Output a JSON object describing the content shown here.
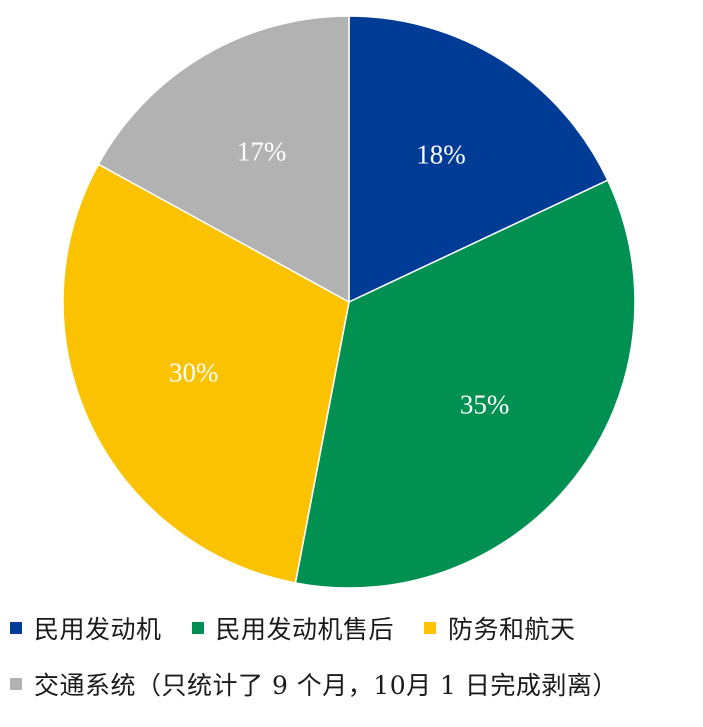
{
  "chart_data": {
    "type": "pie",
    "start_angle_deg": 0,
    "direction": "clockwise",
    "slices": [
      {
        "name": "民用发动机",
        "value": 18,
        "label": "18%",
        "color": "#003C96"
      },
      {
        "name": "民用发动机售后",
        "value": 35,
        "label": "35%",
        "color": "#009051"
      },
      {
        "name": "防务和航天",
        "value": 30,
        "label": "30%",
        "color": "#FAC200"
      },
      {
        "name": "交通系统（只统计了 9 个月，10月 1 日完成剥离）",
        "value": 17,
        "label": "17%",
        "color": "#B2B2B2"
      }
    ],
    "legend": {
      "placement": "bottom",
      "rows": [
        [
          0,
          1,
          2
        ],
        [
          3
        ]
      ]
    }
  }
}
